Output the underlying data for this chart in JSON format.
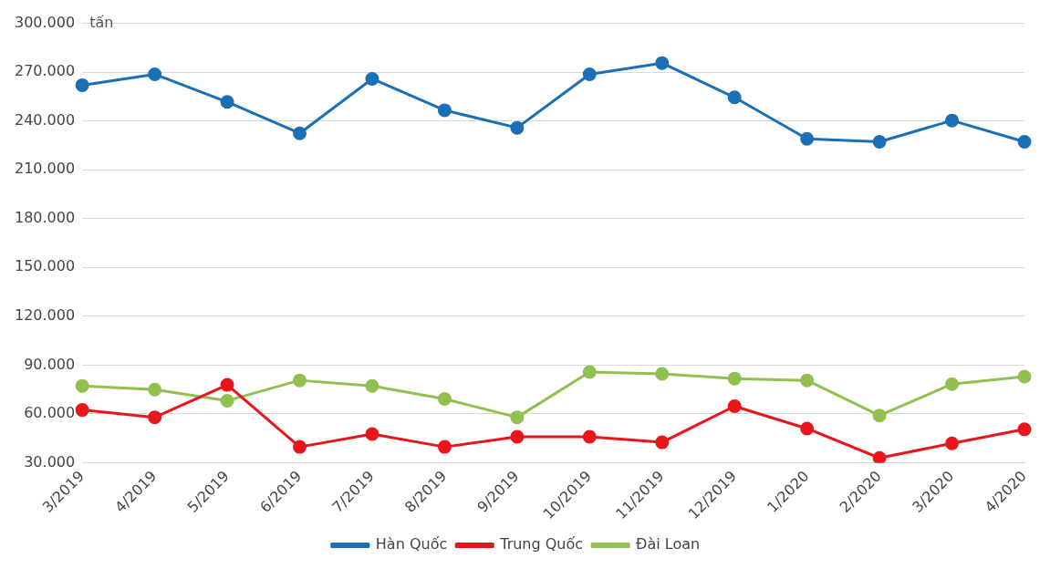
{
  "chart_data": {
    "type": "line",
    "ylabel": "tấn",
    "categories": [
      "3/2019",
      "4/2019",
      "5/2019",
      "6/2019",
      "7/2019",
      "8/2019",
      "9/2019",
      "10/2019",
      "11/2019",
      "12/2019",
      "1/2020",
      "2/2020",
      "3/2020",
      "4/2020"
    ],
    "series": [
      {
        "name": "Hàn Quốc",
        "color": "#1a6fb5",
        "values": [
          262000,
          268700,
          251700,
          232400,
          265900,
          246600,
          235800,
          268700,
          275600,
          254500,
          229000,
          227200,
          240300,
          227200
        ]
      },
      {
        "name": "Trung Quốc",
        "color": "#e8161b",
        "values": [
          62400,
          57900,
          77800,
          39700,
          47600,
          39700,
          45900,
          45900,
          42500,
          64700,
          51000,
          32900,
          41900,
          50500
        ]
      },
      {
        "name": "Đài Loan",
        "color": "#92c050",
        "values": [
          77200,
          74900,
          68100,
          80600,
          77200,
          69200,
          57900,
          85700,
          84600,
          81700,
          80600,
          59000,
          78300,
          82900
        ]
      }
    ],
    "ylim": [
      30000,
      300000
    ],
    "yticks": [
      {
        "value": 30000,
        "label": "30.000"
      },
      {
        "value": 60000,
        "label": "60.000"
      },
      {
        "value": 90000,
        "label": "90.000"
      },
      {
        "value": 120000,
        "label": "120.000"
      },
      {
        "value": 150000,
        "label": "150.000"
      },
      {
        "value": 180000,
        "label": "180.000"
      },
      {
        "value": 210000,
        "label": "210.000"
      },
      {
        "value": 240000,
        "label": "240.000"
      },
      {
        "value": 270000,
        "label": "270.000"
      },
      {
        "value": 300000,
        "label": "300.000"
      }
    ],
    "grid": "y",
    "legend": "bottom",
    "marker": "circle",
    "line_style": "solid"
  }
}
